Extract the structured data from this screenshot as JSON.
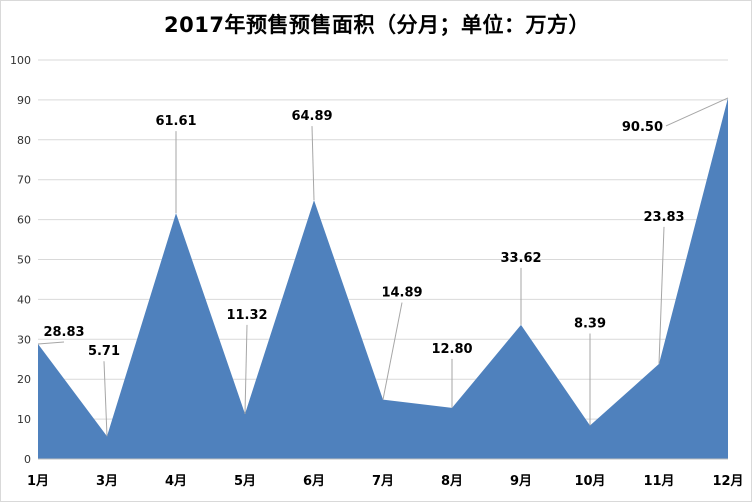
{
  "chart_data": {
    "type": "area",
    "title": "2017年预售预售面积（分月；单位：万方）",
    "categories": [
      "1月",
      "3月",
      "4月",
      "5月",
      "6月",
      "7月",
      "8月",
      "9月",
      "10月",
      "11月",
      "12月"
    ],
    "series": [
      {
        "values": [
          28.83,
          5.71,
          61.61,
          11.32,
          64.89,
          14.89,
          12.8,
          33.62,
          8.39,
          23.83,
          90.5
        ]
      }
    ],
    "data_labels": [
      "28.83",
      "5.71",
      "61.61",
      "11.32",
      "64.89",
      "14.89",
      "12.80",
      "33.62",
      "8.39",
      "23.83",
      "90.50"
    ],
    "ylim": [
      0,
      100
    ],
    "yticks": [
      0,
      10,
      20,
      30,
      40,
      50,
      60,
      70,
      80,
      90,
      100
    ],
    "grid": true,
    "legend": "none",
    "color": "#4f81bd"
  }
}
